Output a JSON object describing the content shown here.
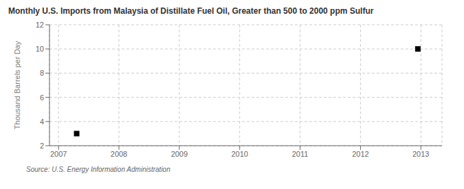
{
  "chart_data": {
    "type": "scatter",
    "title": "Monthly U.S. Imports from Malaysia of Distillate Fuel Oil, Greater than 500 to 2000 ppm Sulfur",
    "y_label": "Thousand Barrels per Day",
    "annotations": [
      "Source: U.S. Energy Information Administration"
    ],
    "x": [
      2007.3,
      2012.95
    ],
    "values": [
      3.0,
      10.0
    ],
    "marker": "square",
    "xlim": [
      2006.85,
      2013.35
    ],
    "xticks": [
      2007,
      2008,
      2009,
      2010,
      2011,
      2012,
      2013
    ],
    "ylim": [
      2,
      12
    ],
    "yticks": [
      2,
      4,
      6,
      8,
      10,
      12
    ],
    "grid": true
  }
}
